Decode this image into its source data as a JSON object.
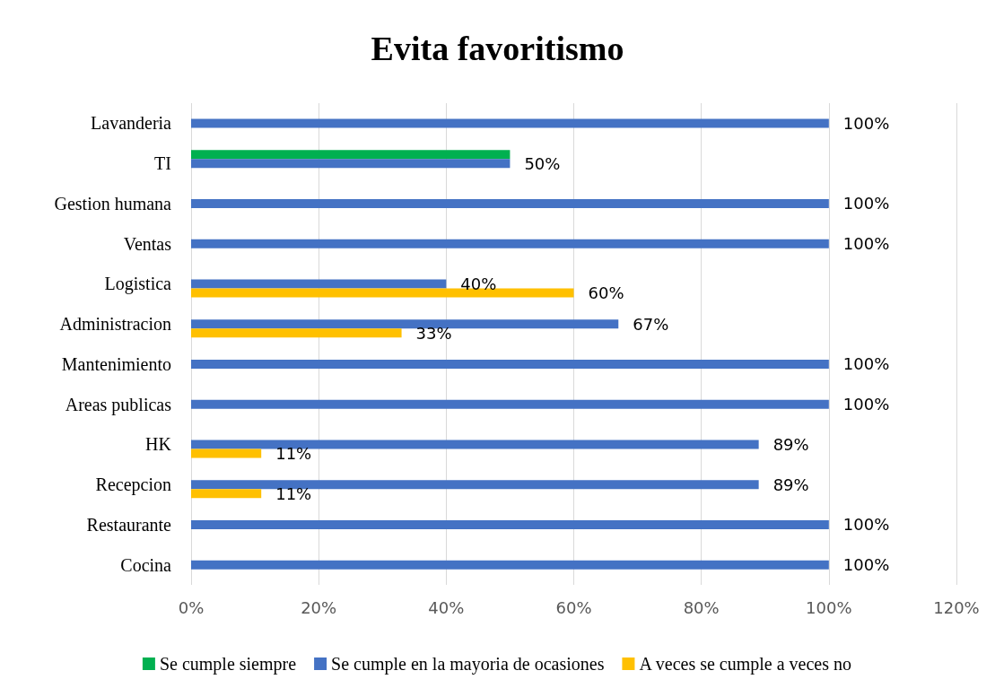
{
  "chart_data": {
    "type": "bar",
    "orientation": "horizontal",
    "title": "Evita favoritismo",
    "categories": [
      "Lavanderia",
      "TI",
      "Gestion humana",
      "Ventas",
      "Logistica",
      "Administracion",
      "Mantenimiento",
      "Areas publicas",
      "HK",
      "Recepcion",
      "Restaurante",
      "Cocina"
    ],
    "series": [
      {
        "name": "Se cumple siempre",
        "color": "#00b050",
        "values": [
          null,
          50,
          null,
          null,
          null,
          null,
          null,
          null,
          null,
          null,
          null,
          null
        ],
        "value_labels": [
          null,
          null,
          null,
          null,
          null,
          null,
          null,
          null,
          null,
          null,
          null,
          null
        ]
      },
      {
        "name": "Se cumple en la mayoria de ocasiones",
        "color": "#4472c4",
        "values": [
          100,
          50,
          100,
          100,
          40,
          67,
          100,
          100,
          89,
          89,
          100,
          100
        ],
        "value_labels": [
          "100%",
          "50%",
          "100%",
          "100%",
          "40%",
          "67%",
          "100%",
          "100%",
          "89%",
          "89%",
          "100%",
          "100%"
        ]
      },
      {
        "name": "A veces se cumple a veces no",
        "color": "#ffc000",
        "values": [
          null,
          null,
          null,
          null,
          60,
          33,
          null,
          null,
          11,
          11,
          null,
          null
        ],
        "value_labels": [
          null,
          null,
          null,
          null,
          "60%",
          "33%",
          null,
          null,
          "11%",
          "11%",
          null,
          null
        ]
      }
    ],
    "xlim": [
      0,
      120
    ],
    "xticks": [
      {
        "value": 0,
        "label": "0%"
      },
      {
        "value": 20,
        "label": "20%"
      },
      {
        "value": 40,
        "label": "40%"
      },
      {
        "value": 60,
        "label": "60%"
      },
      {
        "value": 80,
        "label": "80%"
      },
      {
        "value": 100,
        "label": "100%"
      },
      {
        "value": 120,
        "label": "120%"
      }
    ],
    "grid": "x",
    "legend": "bottom"
  }
}
